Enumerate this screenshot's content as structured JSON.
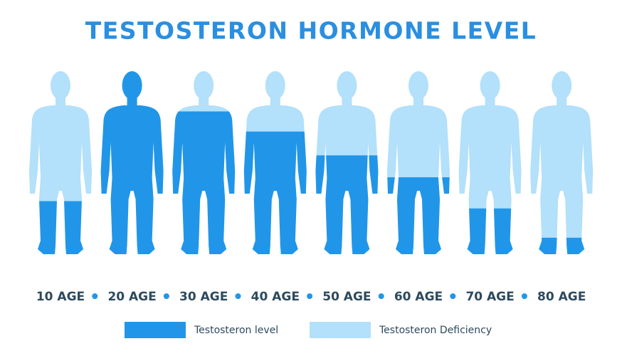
{
  "title": "TESTOSTERON HORMONE LEVEL",
  "figures": [
    {
      "label": "10 AGE",
      "level": 29
    },
    {
      "label": "20 AGE",
      "level": 100
    },
    {
      "label": "30 AGE",
      "level": 78
    },
    {
      "label": "40 AGE",
      "level": 67
    },
    {
      "label": "50 AGE",
      "level": 54
    },
    {
      "label": "60 AGE",
      "level": 42
    },
    {
      "label": "70 AGE",
      "level": 25
    },
    {
      "label": "80 AGE",
      "level": 9
    }
  ],
  "legend": [
    {
      "label": "Testosteron level",
      "color": "#2196e8"
    },
    {
      "label": "Testosteron Deficiency",
      "color": "#b3e0fa"
    }
  ]
}
